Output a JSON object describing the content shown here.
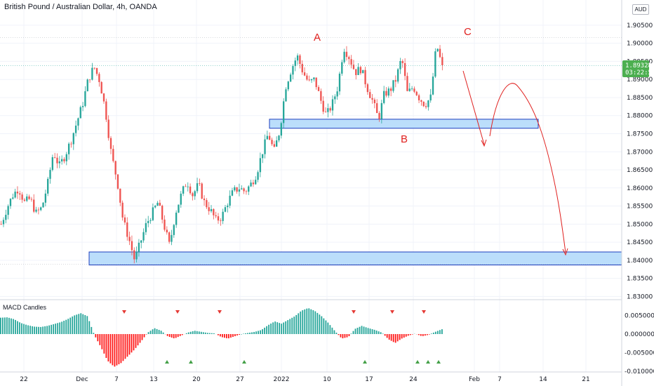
{
  "header": {
    "title": "British Pound / Australian Dollar, 4h, OANDA",
    "currency": "AUD"
  },
  "macd": {
    "title": "MACD Candles"
  },
  "colors": {
    "up": "#26a69a",
    "down": "#ef5350",
    "macd_up": "#26a69a",
    "macd_down": "#ff1a1a",
    "zone_fill": "#bbdefb",
    "zone_stroke": "#1e3fbf",
    "annotation": "#e0211f",
    "price_label_bg": "#4caf50",
    "grid": "#f0f3fa"
  },
  "chart_data": [
    {
      "type": "candlestick",
      "title": "British Pound / Australian Dollar, 4h, OANDA",
      "x_ticks": [
        "22",
        "Dec",
        "7",
        "13",
        "20",
        "27",
        "2022",
        "10",
        "17",
        "24",
        "Feb",
        "7",
        "14",
        "21"
      ],
      "y_ticks": [
        "1.83000",
        "1.83500",
        "1.84000",
        "1.84500",
        "1.85000",
        "1.85500",
        "1.86000",
        "1.86500",
        "1.87000",
        "1.87500",
        "1.88000",
        "1.88500",
        "1.89000",
        "1.89500",
        "1.90000",
        "1.90500"
      ],
      "ylim": [
        1.828,
        1.912
      ],
      "last_price": "1.89328",
      "countdown": "03:22:59",
      "swing_path": [
        1.85,
        1.8545,
        1.858,
        1.86,
        1.856,
        1.857,
        1.853,
        1.8545,
        1.861,
        1.87,
        1.866,
        1.869,
        1.873,
        1.878,
        1.883,
        1.89,
        1.8935,
        1.8895,
        1.881,
        1.869,
        1.862,
        1.851,
        1.846,
        1.84,
        1.845,
        1.85,
        1.853,
        1.856,
        1.85,
        1.844,
        1.853,
        1.858,
        1.862,
        1.858,
        1.861,
        1.856,
        1.854,
        1.851,
        1.852,
        1.856,
        1.859,
        1.86,
        1.859,
        1.861,
        1.864,
        1.87,
        1.875,
        1.87,
        1.876,
        1.888,
        1.893,
        1.8965,
        1.892,
        1.889,
        1.89,
        1.8845,
        1.88,
        1.883,
        1.888,
        1.899,
        1.896,
        1.892,
        1.893,
        1.888,
        1.884,
        1.879,
        1.886,
        1.887,
        1.89,
        1.896,
        1.886,
        1.888,
        1.885,
        1.883,
        1.885,
        1.8998,
        1.8932
      ],
      "support_zones": [
        {
          "low": 1.8765,
          "high": 1.879,
          "from": "Jan 1",
          "to": "Feb 13"
        },
        {
          "low": 1.8387,
          "high": 1.8423,
          "from": "Nov 23",
          "to": "Feb 26"
        }
      ],
      "annotations": [
        "A",
        "B",
        "C"
      ]
    },
    {
      "type": "bar",
      "title": "MACD Candles",
      "y_ticks": [
        "0.005000",
        "0.000000",
        "-0.005000",
        "-0.010000"
      ],
      "ylim": [
        -0.0105,
        0.0065
      ],
      "histogram_path": [
        0.0044,
        0.0045,
        0.004,
        0.003,
        0.0024,
        0.002,
        0.0019,
        0.0022,
        0.0027,
        0.0032,
        0.004,
        0.005,
        0.0056,
        0.0048,
        -0.0002,
        -0.0035,
        -0.0072,
        -0.0088,
        -0.0078,
        -0.006,
        -0.0042,
        -0.002,
        0.0004,
        0.0016,
        0.0009,
        -0.0006,
        -0.0012,
        -0.0004,
        0.0004,
        0.0009,
        0.0006,
        0.0003,
        0.0002,
        -0.0008,
        -0.0012,
        -0.0006,
        0.0,
        0.0003,
        0.0006,
        0.0011,
        0.0024,
        0.0034,
        0.0028,
        0.0038,
        0.0048,
        0.0063,
        0.007,
        0.0062,
        0.0048,
        0.003,
        0.0008,
        -0.0012,
        -0.0008,
        0.0014,
        0.0022,
        0.0016,
        0.0011,
        0.0004,
        -0.0014,
        -0.0024,
        -0.0012,
        -0.0004,
        0.0001,
        -0.0006,
        -0.0002,
        0.0006,
        0.0013
      ],
      "down_markers": 6,
      "up_markers": 7
    }
  ]
}
